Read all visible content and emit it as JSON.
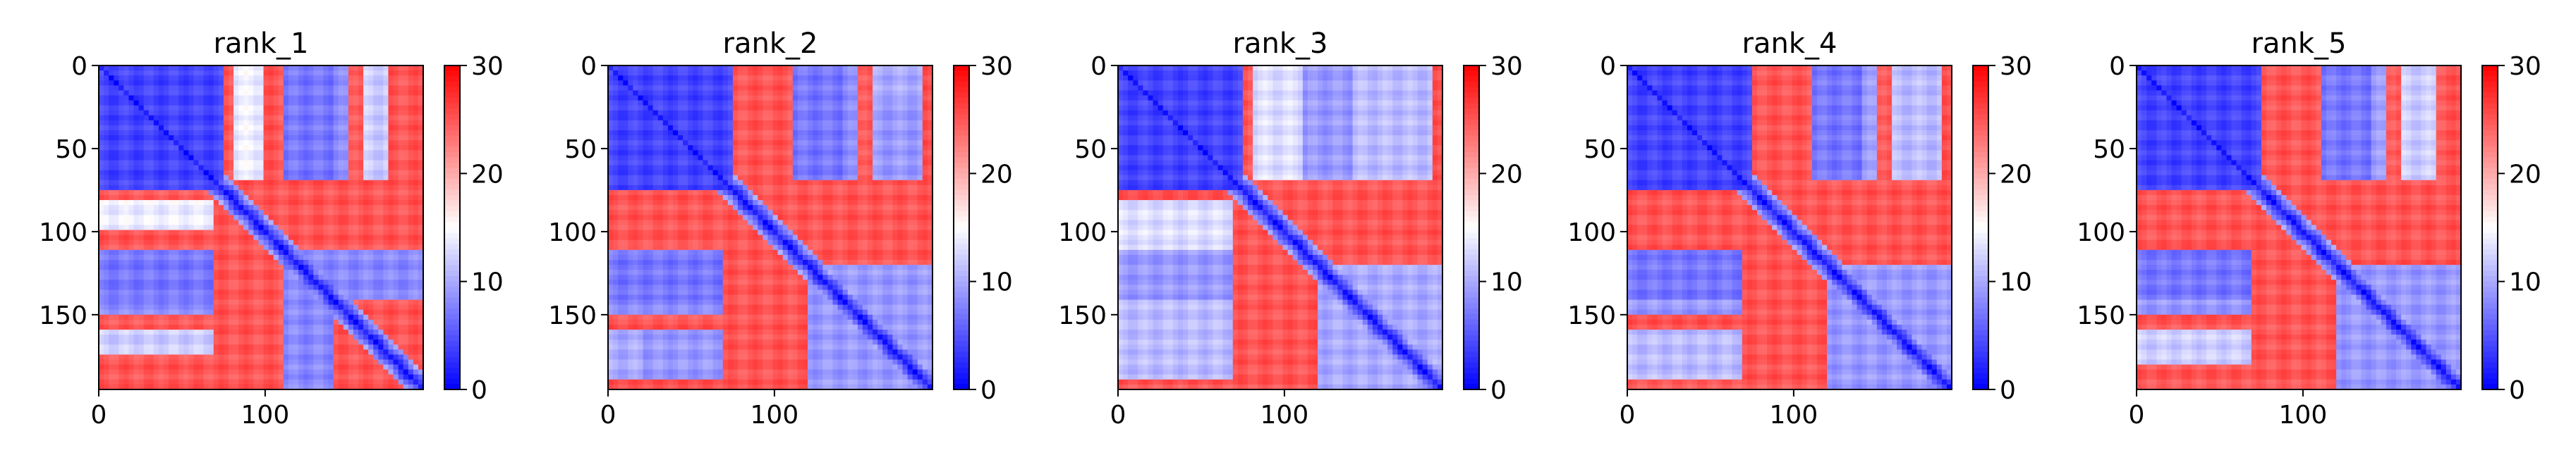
{
  "chart_data": [
    {
      "type": "heatmap",
      "title": "rank_1",
      "matrix_size": 195,
      "xticks": [
        0,
        100
      ],
      "yticks": [
        0,
        50,
        100,
        150
      ],
      "colorbar": {
        "min": 0,
        "max": 30,
        "ticks": [
          0,
          10,
          20,
          30
        ],
        "colormap": "bwr"
      },
      "low_blocks": [
        {
          "r0": 0,
          "r1": 75,
          "c0": 0,
          "c1": 75,
          "v": 4
        },
        {
          "r0": 0,
          "r1": 70,
          "c0": 80,
          "c1": 100,
          "v": 14
        },
        {
          "r0": 0,
          "r1": 70,
          "c0": 110,
          "c1": 150,
          "v": 8
        },
        {
          "r0": 0,
          "r1": 70,
          "c0": 160,
          "c1": 175,
          "v": 12
        },
        {
          "r0": 110,
          "r1": 140,
          "c0": 0,
          "c1": 70,
          "v": 7
        },
        {
          "r0": 110,
          "r1": 140,
          "c0": 110,
          "c1": 195,
          "v": 8
        }
      ]
    },
    {
      "type": "heatmap",
      "title": "rank_2",
      "matrix_size": 195,
      "xticks": [
        0,
        100
      ],
      "yticks": [
        0,
        50,
        100,
        150
      ],
      "colorbar": {
        "min": 0,
        "max": 30,
        "ticks": [
          0,
          10,
          20,
          30
        ],
        "colormap": "bwr"
      },
      "low_blocks": [
        {
          "r0": 0,
          "r1": 75,
          "c0": 0,
          "c1": 75,
          "v": 4
        },
        {
          "r0": 0,
          "r1": 70,
          "c0": 120,
          "c1": 150,
          "v": 8
        },
        {
          "r0": 0,
          "r1": 70,
          "c0": 160,
          "c1": 190,
          "v": 10
        },
        {
          "r0": 110,
          "r1": 140,
          "c0": 0,
          "c1": 70,
          "v": 7
        },
        {
          "r0": 160,
          "r1": 190,
          "c0": 20,
          "c1": 70,
          "v": 9
        },
        {
          "r0": 120,
          "r1": 190,
          "c0": 120,
          "c1": 195,
          "v": 9
        }
      ]
    },
    {
      "type": "heatmap",
      "title": "rank_3",
      "matrix_size": 195,
      "xticks": [
        0,
        100
      ],
      "yticks": [
        0,
        50,
        100,
        150
      ],
      "colorbar": {
        "min": 0,
        "max": 30,
        "ticks": [
          0,
          10,
          20,
          30
        ],
        "colormap": "bwr"
      },
      "low_blocks": [
        {
          "r0": 0,
          "r1": 75,
          "c0": 0,
          "c1": 75,
          "v": 4
        },
        {
          "r0": 0,
          "r1": 70,
          "c0": 80,
          "c1": 120,
          "v": 13
        },
        {
          "r0": 0,
          "r1": 70,
          "c0": 120,
          "c1": 190,
          "v": 11
        },
        {
          "r0": 110,
          "r1": 140,
          "c0": 0,
          "c1": 70,
          "v": 9
        },
        {
          "r0": 120,
          "r1": 190,
          "c0": 120,
          "c1": 195,
          "v": 10
        }
      ]
    },
    {
      "type": "heatmap",
      "title": "rank_4",
      "matrix_size": 195,
      "xticks": [
        0,
        100
      ],
      "yticks": [
        0,
        50,
        100,
        150
      ],
      "colorbar": {
        "min": 0,
        "max": 30,
        "ticks": [
          0,
          10,
          20,
          30
        ],
        "colormap": "bwr"
      },
      "low_blocks": [
        {
          "r0": 0,
          "r1": 75,
          "c0": 0,
          "c1": 75,
          "v": 4
        },
        {
          "r0": 0,
          "r1": 70,
          "c0": 120,
          "c1": 150,
          "v": 9
        },
        {
          "r0": 0,
          "r1": 70,
          "c0": 160,
          "c1": 190,
          "v": 11
        },
        {
          "r0": 110,
          "r1": 140,
          "c0": 0,
          "c1": 70,
          "v": 7
        },
        {
          "r0": 120,
          "r1": 190,
          "c0": 120,
          "c1": 195,
          "v": 9
        }
      ]
    },
    {
      "type": "heatmap",
      "title": "rank_5",
      "matrix_size": 195,
      "xticks": [
        0,
        100
      ],
      "yticks": [
        0,
        50,
        100,
        150
      ],
      "colorbar": {
        "min": 0,
        "max": 30,
        "ticks": [
          0,
          10,
          20,
          30
        ],
        "colormap": "bwr"
      },
      "low_blocks": [
        {
          "r0": 0,
          "r1": 75,
          "c0": 0,
          "c1": 75,
          "v": 4
        },
        {
          "r0": 0,
          "r1": 70,
          "c0": 120,
          "c1": 150,
          "v": 9
        },
        {
          "r0": 0,
          "r1": 70,
          "c0": 160,
          "c1": 180,
          "v": 12
        },
        {
          "r0": 110,
          "r1": 140,
          "c0": 0,
          "c1": 70,
          "v": 7
        },
        {
          "r0": 120,
          "r1": 190,
          "c0": 120,
          "c1": 195,
          "v": 9
        }
      ]
    }
  ],
  "colors": {
    "colormap": [
      "#0000ff",
      "#ffffff",
      "#ff0000"
    ],
    "axis": "#000000",
    "background": "#ffffff"
  }
}
